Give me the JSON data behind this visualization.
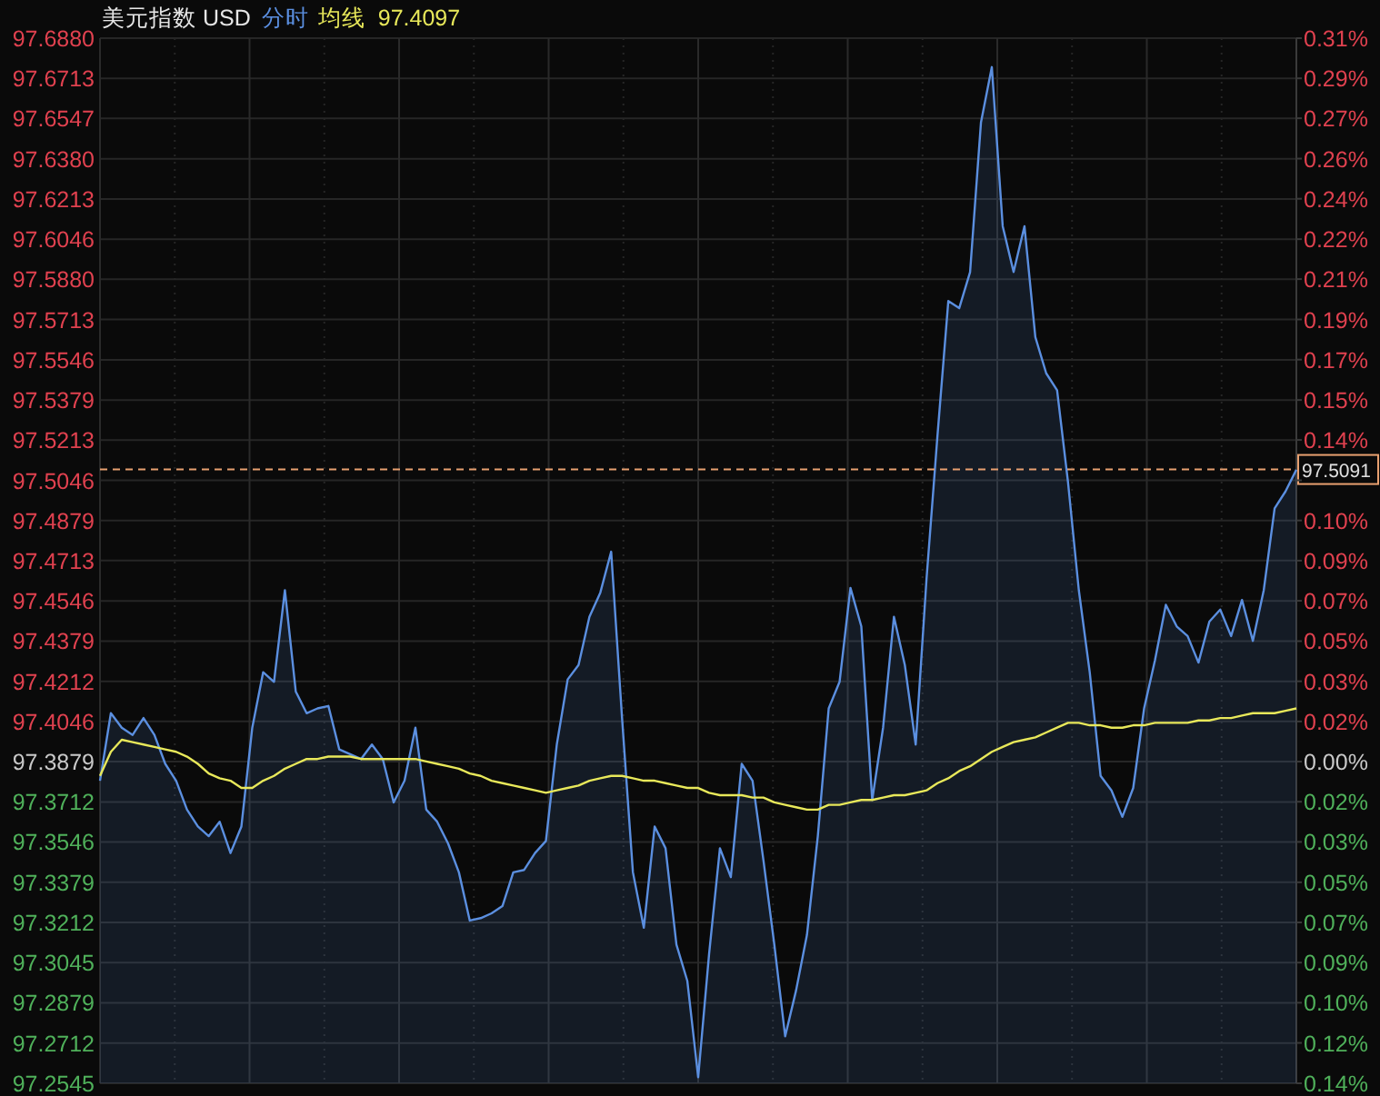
{
  "chart_data": {
    "type": "line",
    "title": "美元指数 USD",
    "legend": "top",
    "categories": [
      null,
      null,
      null,
      null,
      null,
      null,
      null,
      null,
      null,
      null,
      null,
      null,
      null,
      null,
      null,
      null,
      null,
      null,
      null,
      null,
      null,
      null,
      null,
      null,
      null,
      null,
      null,
      null,
      null,
      null,
      null,
      null,
      null,
      null,
      null,
      null,
      null,
      null,
      null,
      null,
      null,
      null,
      null,
      null,
      null,
      null,
      null,
      null,
      null,
      null,
      null,
      null,
      null,
      null,
      null,
      null,
      null,
      null,
      null,
      null,
      null,
      null,
      null,
      null,
      null,
      null,
      null,
      null,
      null,
      null,
      null,
      null,
      null,
      null,
      null,
      null,
      null,
      null,
      null,
      null,
      null,
      null,
      null,
      null,
      null,
      null,
      null,
      null,
      null,
      null,
      null,
      null,
      null,
      null,
      null,
      null,
      null,
      null,
      null,
      null,
      null,
      null,
      null,
      null,
      null,
      null,
      null,
      null,
      null,
      null,
      null
    ],
    "series": [
      {
        "name": "分时",
        "type": "area",
        "color": "#5b8fe0",
        "values": [
          97.38,
          97.408,
          97.402,
          97.399,
          97.406,
          97.399,
          97.387,
          97.38,
          97.368,
          97.361,
          97.357,
          97.363,
          97.35,
          97.361,
          97.402,
          97.425,
          97.421,
          97.459,
          97.417,
          97.408,
          97.41,
          97.411,
          97.393,
          97.391,
          97.389,
          97.395,
          97.389,
          97.371,
          97.38,
          97.402,
          97.368,
          97.363,
          97.354,
          97.342,
          97.322,
          97.323,
          97.325,
          97.328,
          97.342,
          97.343,
          97.35,
          97.355,
          97.395,
          97.422,
          97.428,
          97.448,
          97.458,
          97.475,
          97.406,
          97.342,
          97.319,
          97.361,
          97.352,
          97.312,
          97.297,
          97.257,
          97.308,
          97.352,
          97.34,
          97.387,
          97.38,
          97.347,
          97.312,
          97.274,
          97.293,
          97.316,
          97.357,
          97.41,
          97.421,
          97.46,
          97.444,
          97.372,
          97.402,
          97.448,
          97.428,
          97.395,
          97.464,
          97.523,
          97.579,
          97.576,
          97.591,
          97.653,
          97.676,
          97.61,
          97.591,
          97.61,
          97.564,
          97.549,
          97.542,
          97.504,
          97.459,
          97.425,
          97.382,
          97.376,
          97.365,
          97.377,
          97.41,
          97.43,
          97.453,
          97.444,
          97.44,
          97.429,
          97.446,
          97.451,
          97.44,
          97.455,
          97.438,
          97.459,
          97.493,
          97.5,
          97.509
        ]
      },
      {
        "name": "均线",
        "color": "#e8e85a",
        "values": [
          97.382,
          97.392,
          97.397,
          97.396,
          97.395,
          97.394,
          97.393,
          97.392,
          97.39,
          97.387,
          97.383,
          97.381,
          97.38,
          97.377,
          97.377,
          97.38,
          97.382,
          97.385,
          97.387,
          97.389,
          97.389,
          97.39,
          97.39,
          97.39,
          97.389,
          97.389,
          97.389,
          97.389,
          97.389,
          97.389,
          97.388,
          97.387,
          97.386,
          97.385,
          97.383,
          97.382,
          97.38,
          97.379,
          97.378,
          97.377,
          97.376,
          97.375,
          97.376,
          97.377,
          97.378,
          97.38,
          97.381,
          97.382,
          97.382,
          97.381,
          97.38,
          97.38,
          97.379,
          97.378,
          97.377,
          97.377,
          97.375,
          97.374,
          97.374,
          97.374,
          97.373,
          97.373,
          97.371,
          97.37,
          97.369,
          97.368,
          97.368,
          97.37,
          97.37,
          97.371,
          97.372,
          97.372,
          97.373,
          97.374,
          97.374,
          97.375,
          97.376,
          97.379,
          97.381,
          97.384,
          97.386,
          97.389,
          97.392,
          97.394,
          97.396,
          97.397,
          97.398,
          97.4,
          97.402,
          97.404,
          97.404,
          97.403,
          97.403,
          97.402,
          97.402,
          97.403,
          97.403,
          97.404,
          97.404,
          97.404,
          97.404,
          97.405,
          97.405,
          97.406,
          97.406,
          97.407,
          97.408,
          97.408,
          97.408,
          97.409,
          97.41
        ]
      }
    ],
    "annotations": [
      "97.4097"
    ],
    "ylim": [
      97.2545,
      97.688
    ],
    "yticks": [
      {
        "value": 97.688,
        "label": "97.6880"
      },
      97.6713,
      97.6547,
      {
        "value": 97.638,
        "label": "97.6380"
      },
      97.6213,
      97.6046,
      {
        "value": 97.588,
        "label": "97.5880"
      },
      97.5713,
      97.5546,
      97.5379,
      97.5213,
      97.5046,
      97.4879,
      97.4713,
      97.4546,
      97.4379,
      97.4212,
      97.4046,
      97.3879,
      97.3712,
      97.3546,
      97.3379,
      97.3212,
      97.3045,
      97.2879,
      97.2712,
      97.2545
    ],
    "y2lim": [
      -0.137,
      0.3081
    ],
    "y2ticks": [
      {
        "value": 0.3081,
        "label": "0.31%"
      },
      {
        "value": 0.291,
        "label": "0.29%"
      },
      {
        "value": 0.274,
        "label": "0.27%"
      },
      {
        "value": 0.2568,
        "label": "0.26%"
      },
      {
        "value": 0.2397,
        "label": "0.24%"
      },
      {
        "value": 0.2225,
        "label": "0.22%"
      },
      {
        "value": 0.2055,
        "label": "0.21%"
      },
      {
        "value": 0.1883,
        "label": "0.19%"
      },
      {
        "value": 0.1712,
        "label": "0.17%"
      },
      {
        "value": 0.154,
        "label": "0.15%"
      },
      {
        "value": 0.137,
        "label": "0.14%"
      },
      {
        "value": 0.1198,
        "label": null
      },
      {
        "value": 0.1027,
        "label": "0.10%"
      },
      {
        "value": 0.0856,
        "label": "0.09%"
      },
      {
        "value": 0.0685,
        "label": "0.07%"
      },
      {
        "value": 0.0513,
        "label": "0.05%"
      },
      {
        "value": 0.0342,
        "label": "0.03%"
      },
      {
        "value": 0.0171,
        "label": "0.02%"
      },
      {
        "value": 0,
        "label": "0.00%"
      },
      {
        "value": -0.0171,
        "label": "0.02%"
      },
      {
        "value": -0.0342,
        "label": "0.03%"
      },
      {
        "value": -0.0514,
        "label": "0.05%"
      },
      {
        "value": -0.0685,
        "label": "0.07%"
      },
      {
        "value": -0.0856,
        "label": "0.09%"
      },
      {
        "value": -0.1027,
        "label": "0.10%"
      },
      {
        "value": -0.1198,
        "label": "0.12%"
      },
      {
        "value": -0.137,
        "label": "0.14%"
      }
    ],
    "ref_lines": [
      {
        "axis": "y",
        "value": 97.5091,
        "label": "97.5091",
        "color": "#e8a070",
        "line_style": "dashed"
      }
    ],
    "grid": true
  }
}
